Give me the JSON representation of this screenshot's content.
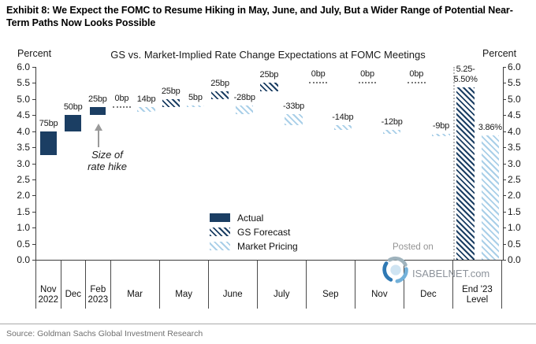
{
  "exhibit_title": "Exhibit 8: We Expect the FOMC to Resume Hiking in May, June, and July, But a Wider Range of Potential Near-Term Paths Now Looks Possible",
  "chart_title": "GS vs. Market-Implied Rate Change Expectations at FOMC Meetings",
  "y_axis": {
    "label_left": "Percent",
    "label_right": "Percent",
    "ticks": [
      "6.0",
      "5.5",
      "5.0",
      "4.5",
      "4.0",
      "3.5",
      "3.0",
      "2.5",
      "2.0",
      "1.5",
      "1.0",
      "0.5",
      "0.0"
    ]
  },
  "legend": [
    {
      "label": "Actual",
      "series": "actual"
    },
    {
      "label": "GS Forecast",
      "series": "gs"
    },
    {
      "label": "Market Pricing",
      "series": "market"
    }
  ],
  "annotation": {
    "text": "Size of\nrate hike"
  },
  "watermark": {
    "posted_on": "Posted on",
    "site": "ISABELNET.com"
  },
  "source": "Source: Goldman Sachs Global Investment Research",
  "colors": {
    "actual_navy": "#1b3e63",
    "gs_forecast_hatch": "#1b3e63",
    "market_pricing_hatch": "#a9cfe8",
    "zero_dash_gray": "#7a7a7a"
  },
  "chart_data": {
    "type": "bar",
    "title": "GS vs. Market-Implied Rate Change Expectations at FOMC Meetings",
    "ylabel": "Percent",
    "ylim": [
      0,
      6
    ],
    "grid": false,
    "legend_position": "inside-bottom-center",
    "categories": [
      "Nov\n2022",
      "Dec",
      "Feb\n2023",
      "Mar",
      "May",
      "June",
      "July",
      "Sep",
      "Nov",
      "Dec",
      "End '23\nLevel"
    ],
    "meetings": [
      {
        "label": "Nov\n2022",
        "width": 1,
        "bars": [
          {
            "series": "actual",
            "label": "75bp",
            "from": 3.25,
            "to": 4.0
          }
        ]
      },
      {
        "label": "Dec",
        "width": 1,
        "bars": [
          {
            "series": "actual",
            "label": "50bp",
            "from": 4.0,
            "to": 4.5
          }
        ]
      },
      {
        "label": "Feb\n2023",
        "width": 1,
        "bars": [
          {
            "series": "actual",
            "label": "25bp",
            "from": 4.5,
            "to": 4.75
          }
        ]
      },
      {
        "label": "Mar",
        "width": 2,
        "bars": [
          {
            "series": "gs_zero",
            "label": "0bp",
            "at": 4.75
          },
          {
            "series": "market",
            "label": "14bp",
            "from": 4.61,
            "to": 4.75
          }
        ]
      },
      {
        "label": "May",
        "width": 2,
        "bars": [
          {
            "series": "gs",
            "label": "25bp",
            "from": 4.75,
            "to": 5.0
          },
          {
            "series": "market",
            "label": "5bp",
            "from": 4.75,
            "to": 4.8
          }
        ]
      },
      {
        "label": "June",
        "width": 2,
        "bars": [
          {
            "series": "gs",
            "label": "25bp",
            "from": 5.0,
            "to": 5.25
          },
          {
            "series": "market",
            "label": "-28bp",
            "from": 4.8,
            "to": 4.52
          }
        ]
      },
      {
        "label": "July",
        "width": 2,
        "bars": [
          {
            "series": "gs",
            "label": "25bp",
            "from": 5.25,
            "to": 5.5
          },
          {
            "series": "market",
            "label": "-33bp",
            "from": 4.52,
            "to": 4.19
          }
        ]
      },
      {
        "label": "Sep",
        "width": 2,
        "bars": [
          {
            "series": "gs_zero",
            "label": "0bp",
            "at": 5.5
          },
          {
            "series": "market",
            "label": "-14bp",
            "from": 4.19,
            "to": 4.05
          }
        ]
      },
      {
        "label": "Nov",
        "width": 2,
        "bars": [
          {
            "series": "gs_zero",
            "label": "0bp",
            "at": 5.5
          },
          {
            "series": "market",
            "label": "-12bp",
            "from": 4.05,
            "to": 3.93
          }
        ]
      },
      {
        "label": "Dec",
        "width": 2,
        "bars": [
          {
            "series": "gs_zero",
            "label": "0bp",
            "at": 5.5
          },
          {
            "series": "market",
            "label": "-9bp",
            "from": 3.93,
            "to": 3.84
          }
        ]
      },
      {
        "label": "End '23\nLevel",
        "width": 2,
        "separator_before": true,
        "bars": [
          {
            "series": "gs",
            "label": "5.25-\n5.50%",
            "from": 0,
            "to": 5.375
          },
          {
            "series": "market",
            "label": "3.86%",
            "from": 0,
            "to": 3.86
          }
        ]
      }
    ]
  }
}
